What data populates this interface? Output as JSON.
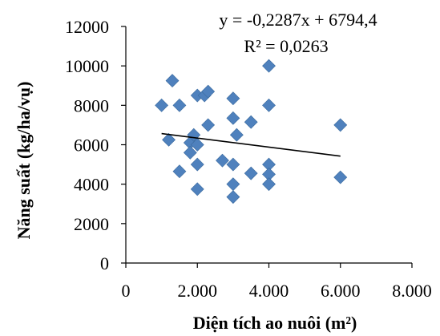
{
  "chart_data": {
    "type": "scatter",
    "title": "",
    "xlabel": "Diện tích ao nuôi (m²)",
    "ylabel": "Năng suất (kg/ha/vụ)",
    "xlim": [
      0,
      8000
    ],
    "ylim": [
      0,
      12000
    ],
    "x_ticks": [
      0,
      2000,
      4000,
      6000,
      8000
    ],
    "x_tick_labels": [
      "0",
      "2.000",
      "4.000",
      "6.000",
      "8.000"
    ],
    "y_ticks": [
      0,
      2000,
      4000,
      6000,
      8000,
      10000,
      12000
    ],
    "y_tick_labels": [
      "0",
      "2000",
      "4000",
      "6000",
      "8000",
      "10000",
      "12000"
    ],
    "grid": false,
    "legend": "none",
    "marker": "diamond",
    "marker_color": "#4F81BD",
    "trendline_color": "#000000",
    "annotations": {
      "equation": "y = -0,2287x + 6794,4",
      "r_squared": "R² = 0,0263"
    },
    "trendline": {
      "slope": -0.2287,
      "intercept": 6794.4,
      "x_range": [
        1000,
        6000
      ]
    },
    "points": [
      {
        "x": 1000,
        "y": 8000
      },
      {
        "x": 1200,
        "y": 6250
      },
      {
        "x": 1300,
        "y": 9250
      },
      {
        "x": 1500,
        "y": 8000
      },
      {
        "x": 1500,
        "y": 4650
      },
      {
        "x": 1800,
        "y": 6100
      },
      {
        "x": 1800,
        "y": 5600
      },
      {
        "x": 1900,
        "y": 6500
      },
      {
        "x": 2000,
        "y": 8500
      },
      {
        "x": 2000,
        "y": 6000
      },
      {
        "x": 2000,
        "y": 5000
      },
      {
        "x": 2000,
        "y": 3750
      },
      {
        "x": 2200,
        "y": 8500
      },
      {
        "x": 2300,
        "y": 8700
      },
      {
        "x": 2300,
        "y": 7000
      },
      {
        "x": 2700,
        "y": 5200
      },
      {
        "x": 3000,
        "y": 8350
      },
      {
        "x": 3000,
        "y": 7350
      },
      {
        "x": 3000,
        "y": 5000
      },
      {
        "x": 3000,
        "y": 4000
      },
      {
        "x": 3000,
        "y": 3350
      },
      {
        "x": 3100,
        "y": 6500
      },
      {
        "x": 3500,
        "y": 7150
      },
      {
        "x": 3500,
        "y": 4550
      },
      {
        "x": 4000,
        "y": 10000
      },
      {
        "x": 4000,
        "y": 8000
      },
      {
        "x": 4000,
        "y": 5000
      },
      {
        "x": 4000,
        "y": 4500
      },
      {
        "x": 4000,
        "y": 4000
      },
      {
        "x": 6000,
        "y": 7000
      },
      {
        "x": 6000,
        "y": 4350
      }
    ]
  }
}
